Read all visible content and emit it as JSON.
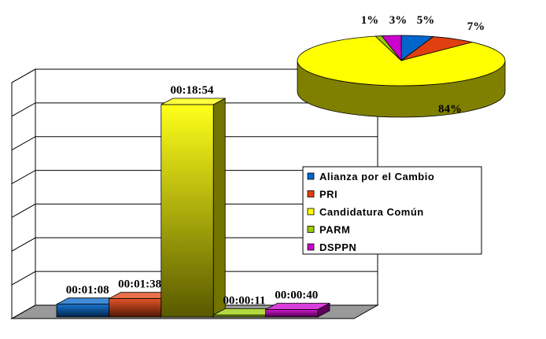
{
  "chart_data": [
    {
      "type": "bar",
      "categories": [
        "Alianza por el Cambio",
        "PRI",
        "Candidatura Común",
        "PARM",
        "DSPPN"
      ],
      "values": [
        68,
        98,
        1134,
        11,
        40
      ],
      "value_labels": [
        "00:01:08",
        "00:01:38",
        "00:18:54",
        "00:00:11",
        "00:00:40"
      ],
      "colors": [
        "#0066cc",
        "#e0400f",
        "#ffff00",
        "#99cc00",
        "#cc00cc"
      ],
      "ylim": [
        0,
        1260
      ],
      "yticks": [
        0,
        180,
        360,
        540,
        720,
        900,
        1080,
        1260
      ],
      "grid": true,
      "legend": "right"
    },
    {
      "type": "pie",
      "values": [
        5,
        7,
        84,
        1,
        3
      ],
      "value_labels": [
        "5%",
        "7%",
        "84%",
        "1%",
        "3%"
      ],
      "colors": [
        "#0066cc",
        "#e0400f",
        "#ffff00",
        "#99cc00",
        "#cc00cc"
      ]
    }
  ]
}
